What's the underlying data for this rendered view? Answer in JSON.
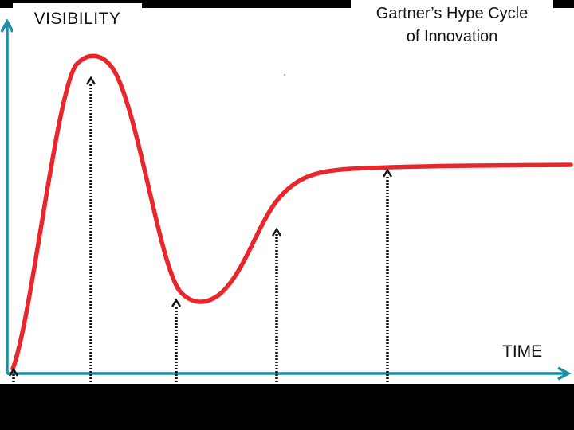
{
  "axes": {
    "y_label": "VISIBILITY",
    "x_label": "TIME",
    "axis_color": "#1a8fa8"
  },
  "title": {
    "line1": "Gartner’s Hype Cycle",
    "line2": "of Innovation"
  },
  "curve": {
    "color": "#e8262b"
  },
  "markers": {
    "count": 5,
    "style": "dotted-arrow",
    "color": "#111111"
  }
}
